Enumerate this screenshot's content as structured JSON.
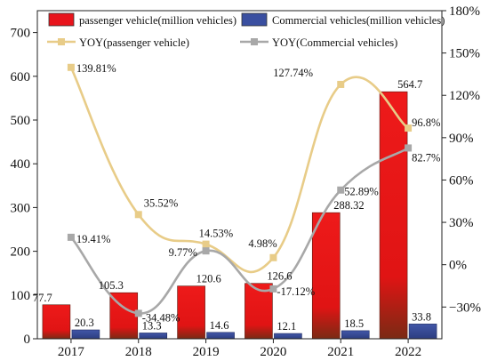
{
  "chart_data": {
    "type": "bar",
    "categories": [
      "2017",
      "2018",
      "2019",
      "2020",
      "2021",
      "2022"
    ],
    "series": [
      {
        "name": "passenger vehicle(million vehicles)",
        "kind": "bar",
        "axis": "left",
        "values": [
          77.7,
          105.3,
          120.6,
          126.6,
          288.32,
          564.7
        ],
        "labels": [
          "77.7",
          "105.3",
          "120.6",
          "126.6",
          "288.32",
          "564.7"
        ],
        "color": "#e8141c"
      },
      {
        "name": "Commercial vehicles(million vehicles)",
        "kind": "bar",
        "axis": "left",
        "values": [
          20.3,
          13.3,
          14.6,
          12.1,
          18.5,
          33.8
        ],
        "labels": [
          "20.3",
          "13.3",
          "14.6",
          "12.1",
          "18.5",
          "33.8"
        ],
        "color": "#3a4fa0"
      },
      {
        "name": "YOY(passenger vehicle)",
        "kind": "line",
        "axis": "right",
        "values": [
          139.81,
          35.52,
          14.53,
          4.98,
          127.74,
          96.8
        ],
        "labels": [
          "139.81%",
          "35.52%",
          "14.53%",
          "4.98%",
          "127.74%",
          "96.8%"
        ],
        "color": "#e8cc88"
      },
      {
        "name": "YOY(Commercial vehicles)",
        "kind": "line",
        "axis": "right",
        "values": [
          19.41,
          -34.48,
          9.77,
          -17.12,
          52.89,
          82.7
        ],
        "labels": [
          "19.41%",
          "-34.48%",
          "9.77%",
          "-17.12%",
          "52.89%",
          "82.7%"
        ],
        "color": "#a8a8a8"
      }
    ],
    "y_left": {
      "ylim": [
        0,
        750
      ],
      "ticks": [
        "0",
        "100",
        "200",
        "300",
        "400",
        "500",
        "600",
        "700"
      ]
    },
    "y_right": {
      "ylim": [
        -52.5,
        180
      ],
      "ticks": [
        "−30%",
        "0%",
        "30%",
        "60%",
        "90%",
        "120%",
        "150%",
        "180%"
      ]
    },
    "legend_placement": "top",
    "grid": false
  }
}
